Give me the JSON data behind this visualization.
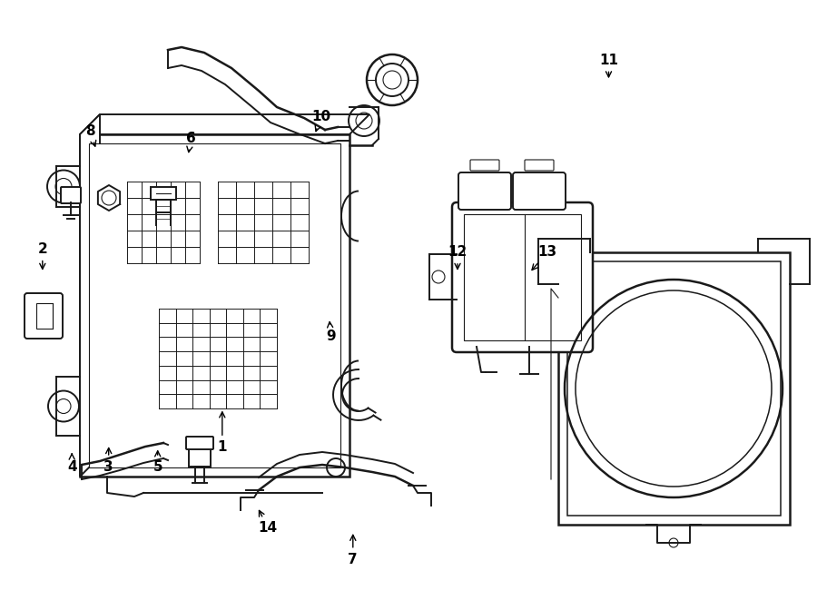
{
  "bg_color": "#ffffff",
  "line_color": "#1a1a1a",
  "lw_main": 1.4,
  "lw_thin": 0.8,
  "lw_med": 1.1,
  "font_size": 11,
  "arrow_kw": {
    "arrowstyle": "->",
    "color": "black",
    "lw": 1.0
  },
  "parts_labels": {
    "1": [
      0.272,
      0.745,
      0.272,
      0.68
    ],
    "2": [
      0.052,
      0.415,
      0.052,
      0.455
    ],
    "3": [
      0.133,
      0.778,
      0.133,
      0.74
    ],
    "4": [
      0.088,
      0.778,
      0.088,
      0.75
    ],
    "5": [
      0.193,
      0.778,
      0.193,
      0.745
    ],
    "6": [
      0.234,
      0.23,
      0.23,
      0.26
    ],
    "7": [
      0.432,
      0.932,
      0.432,
      0.885
    ],
    "8": [
      0.11,
      0.218,
      0.118,
      0.25
    ],
    "9": [
      0.405,
      0.56,
      0.403,
      0.53
    ],
    "10": [
      0.393,
      0.195,
      0.385,
      0.225
    ],
    "11": [
      0.745,
      0.1,
      0.745,
      0.135
    ],
    "12": [
      0.56,
      0.42,
      0.56,
      0.455
    ],
    "13": [
      0.67,
      0.42,
      0.648,
      0.455
    ],
    "14": [
      0.328,
      0.88,
      0.315,
      0.845
    ]
  }
}
